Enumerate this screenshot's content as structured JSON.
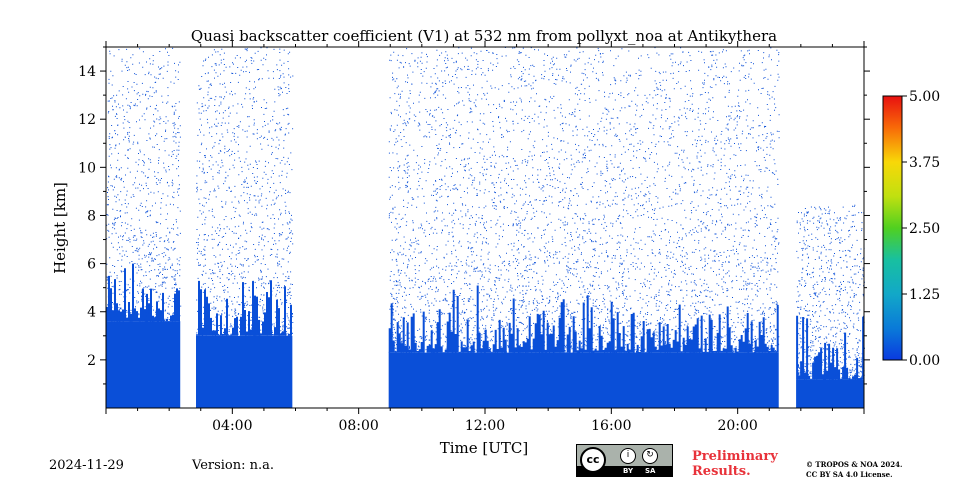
{
  "chart_data": {
    "type": "heatmap",
    "title": "Quasi backscatter coefficient (V1) at 532 nm from pollyxt_noa at Antikythera",
    "xlabel": "Time [UTC]",
    "ylabel": "Height [km]",
    "xlim": [
      0,
      24
    ],
    "ylim": [
      0,
      15
    ],
    "x_tick_labels": [
      "04:00",
      "08:00",
      "12:00",
      "16:00",
      "20:00"
    ],
    "x_tick_values": [
      4,
      8,
      12,
      16,
      20
    ],
    "y_tick_labels": [
      "2",
      "4",
      "6",
      "8",
      "10",
      "12",
      "14"
    ],
    "y_tick_values": [
      2,
      4,
      6,
      8,
      10,
      12,
      14
    ],
    "colorbar": {
      "min": 0.0,
      "max": 5.0,
      "tick_labels": [
        "0.00",
        "1.25",
        "2.50",
        "3.75",
        "5.00"
      ],
      "tick_values": [
        0.0,
        1.25,
        2.5,
        3.75,
        5.0
      ]
    },
    "dominant_color": "#0a4fd8",
    "data_gaps_utc": [
      [
        2.35,
        2.85
      ],
      [
        5.9,
        8.95
      ],
      [
        21.3,
        21.85
      ]
    ],
    "segments": [
      {
        "start": 0.0,
        "end": 2.35,
        "solid_top_km": 3.6,
        "sparse_top_km": 15.0
      },
      {
        "start": 2.85,
        "end": 5.9,
        "solid_top_km": 3.0,
        "sparse_top_km": 15.0
      },
      {
        "start": 8.95,
        "end": 21.3,
        "solid_top_km": 2.3,
        "sparse_top_km": 15.0
      },
      {
        "start": 21.85,
        "end": 24.0,
        "solid_top_km": 1.2,
        "sparse_top_km": 8.5
      }
    ]
  },
  "footer": {
    "date": "2024-11-29",
    "version": "Version: n.a.",
    "preliminary_line1": "Preliminary",
    "preliminary_line2": "Results.",
    "copyright": "© TROPOS & NOA 2024.",
    "license": "CC BY SA 4.0 License.",
    "cc_by": "BY",
    "cc_sa": "SA",
    "cc_mark": "cc"
  }
}
